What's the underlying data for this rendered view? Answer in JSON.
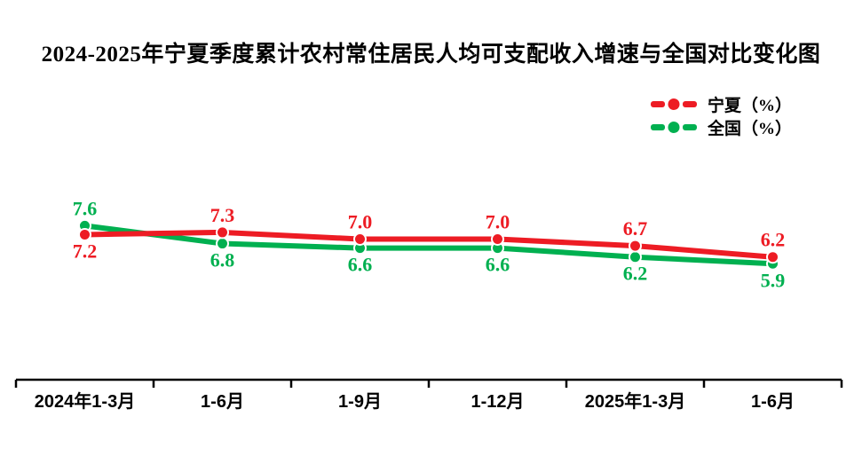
{
  "title": "2024-2025年宁夏季度累计农村常住居民人均可支配收入增速与全国对比变化图",
  "colors": {
    "ningxia_red": "#ed1c24",
    "national_green": "#00b050",
    "axis_black": "#000000",
    "background": "#ffffff"
  },
  "chart_data": {
    "type": "line",
    "title": "2024-2025年宁夏季度累计农村常住居民人均可支配收入增速与全国对比变化图",
    "categories": [
      "2024年1-3月",
      "1-6月",
      "1-9月",
      "1-12月",
      "2025年1-3月",
      "1-6月"
    ],
    "series": [
      {
        "name": "宁夏",
        "legend_label": "宁夏（%）",
        "color": "#ed1c24",
        "values": [
          7.2,
          7.3,
          7.0,
          7.0,
          6.7,
          6.2
        ]
      },
      {
        "name": "全国",
        "legend_label": "全国（%）",
        "color": "#00b050",
        "values": [
          7.6,
          6.8,
          6.6,
          6.6,
          6.2,
          5.9
        ]
      }
    ],
    "xlabel": "",
    "ylabel": "",
    "unit": "%",
    "ylim": [
      5.0,
      9.0
    ],
    "grid": false,
    "y_axis_visible": false,
    "legend_position": "top-right",
    "data_labels": true,
    "marker": "circle-white-ring"
  }
}
